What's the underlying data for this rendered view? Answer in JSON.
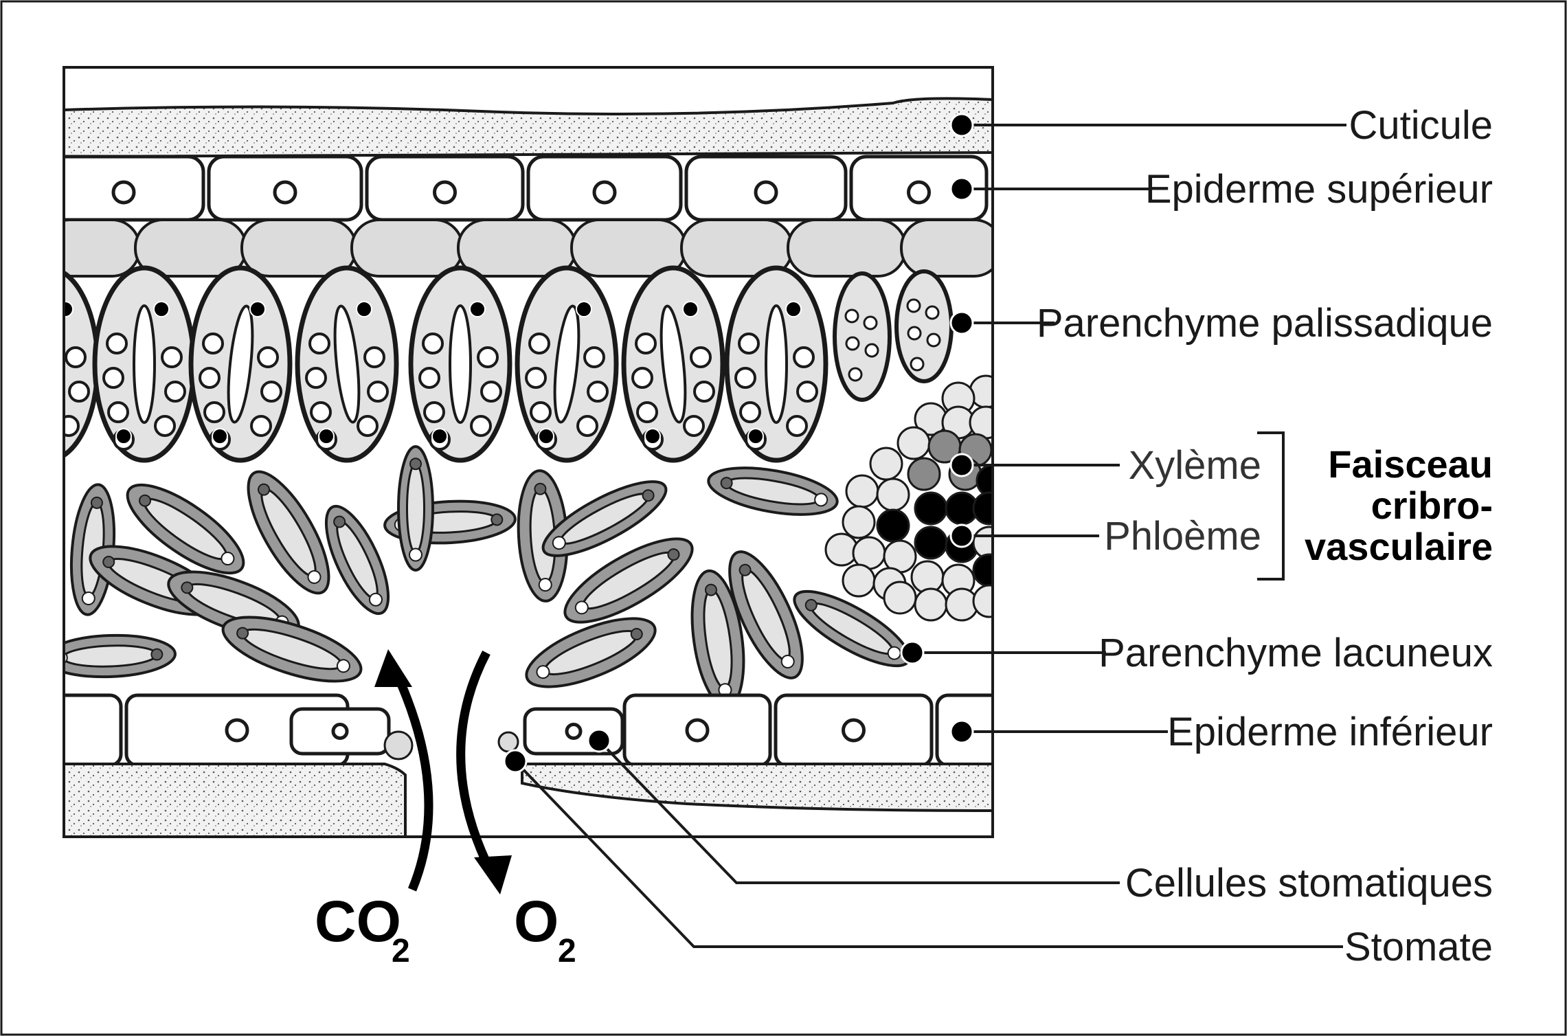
{
  "labels": {
    "cuticule": "Cuticule",
    "epiderme_superieur": "Epiderme supérieur",
    "parenchyme_palissadique": "Parenchyme palissadique",
    "xyleme": "Xylème",
    "phloeme": "Phloème",
    "faisceau_line1": "Faisceau",
    "faisceau_line2": "cribro-",
    "faisceau_line3": "vasculaire",
    "parenchyme_lacuneux": "Parenchyme lacuneux",
    "epiderme_inferieur": "Epiderme inférieur",
    "cellules_stomatiques": "Cellules stomatiques",
    "stomate": "Stomate"
  },
  "gases": {
    "co2_main": "CO",
    "co2_sub": "2",
    "o2_main": "O",
    "o2_sub": "2"
  },
  "colors": {
    "outline": "#1a1a1a",
    "cell_fill": "#ffffff",
    "palisade_fill": "#e3e3e3",
    "layer_fill": "#dcdcdc",
    "spongy_fill": "#9a9a9a",
    "xylem_fill": "#8a8a8a",
    "phloem_fill": "#000000",
    "cuticle_fill": "#efefef"
  }
}
